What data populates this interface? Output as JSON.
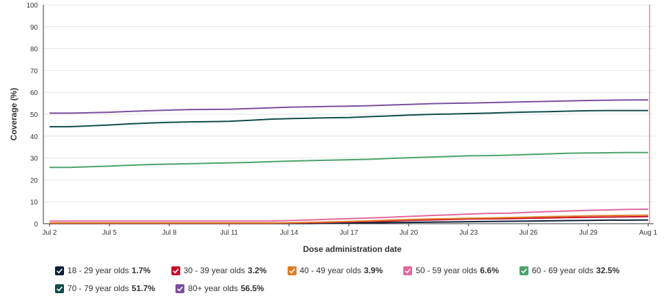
{
  "chart_data": {
    "type": "line",
    "xlabel": "Dose administration date",
    "ylabel": "Coverage (%)",
    "ylim": [
      0,
      100
    ],
    "y_ticks": [
      0,
      10,
      20,
      30,
      40,
      50,
      60,
      70,
      80,
      90,
      100
    ],
    "x_ticks": [
      "Jul 2",
      "Jul 5",
      "Jul 8",
      "Jul 11",
      "Jul 14",
      "Jul 17",
      "Jul 20",
      "Jul 23",
      "Jul 26",
      "Jul 29",
      "Aug 1"
    ],
    "x": [
      "Jul 2",
      "Jul 3",
      "Jul 4",
      "Jul 5",
      "Jul 6",
      "Jul 7",
      "Jul 8",
      "Jul 9",
      "Jul 10",
      "Jul 11",
      "Jul 12",
      "Jul 13",
      "Jul 14",
      "Jul 15",
      "Jul 16",
      "Jul 17",
      "Jul 18",
      "Jul 19",
      "Jul 20",
      "Jul 21",
      "Jul 22",
      "Jul 23",
      "Jul 24",
      "Jul 25",
      "Jul 26",
      "Jul 27",
      "Jul 28",
      "Jul 29",
      "Jul 30",
      "Jul 31",
      "Aug 1"
    ],
    "series": [
      {
        "name": "18 - 29 year olds",
        "legend_value": "1.7%",
        "color": "#0b1f3a",
        "values": [
          0.1,
          0.1,
          0.1,
          0.1,
          0.1,
          0.1,
          0.1,
          0.1,
          0.1,
          0.1,
          0.1,
          0.1,
          0.1,
          0.1,
          0.2,
          0.3,
          0.4,
          0.5,
          0.6,
          0.7,
          0.8,
          0.9,
          1.0,
          1.1,
          1.2,
          1.3,
          1.4,
          1.5,
          1.6,
          1.6,
          1.7
        ]
      },
      {
        "name": "30 - 39 year olds",
        "legend_value": "3.2%",
        "color": "#c8102e",
        "values": [
          0.2,
          0.2,
          0.2,
          0.2,
          0.2,
          0.2,
          0.2,
          0.2,
          0.2,
          0.2,
          0.2,
          0.2,
          0.3,
          0.4,
          0.6,
          0.8,
          1.0,
          1.2,
          1.5,
          1.7,
          1.9,
          2.1,
          2.2,
          2.3,
          2.5,
          2.6,
          2.8,
          2.9,
          3.0,
          3.1,
          3.2
        ]
      },
      {
        "name": "40 - 49 year olds",
        "legend_value": "3.9%",
        "color": "#e07b28",
        "values": [
          0.3,
          0.3,
          0.3,
          0.3,
          0.3,
          0.3,
          0.3,
          0.3,
          0.3,
          0.3,
          0.3,
          0.3,
          0.4,
          0.6,
          0.8,
          1.0,
          1.3,
          1.6,
          1.9,
          2.1,
          2.3,
          2.5,
          2.6,
          2.8,
          3.0,
          3.2,
          3.4,
          3.6,
          3.7,
          3.8,
          3.9
        ]
      },
      {
        "name": "50 - 59 year olds",
        "legend_value": "6.6%",
        "color": "#e2679c",
        "values": [
          1.2,
          1.2,
          1.2,
          1.2,
          1.2,
          1.2,
          1.2,
          1.2,
          1.2,
          1.2,
          1.2,
          1.2,
          1.4,
          1.7,
          2.0,
          2.3,
          2.6,
          2.9,
          3.3,
          3.7,
          4.0,
          4.4,
          4.7,
          4.8,
          5.2,
          5.5,
          5.8,
          6.1,
          6.3,
          6.5,
          6.6
        ]
      },
      {
        "name": "60 - 69 year olds",
        "legend_value": "32.5%",
        "color": "#4aa36b",
        "values": [
          25.7,
          25.7,
          26.0,
          26.3,
          26.7,
          27.0,
          27.2,
          27.4,
          27.6,
          27.8,
          28.0,
          28.3,
          28.6,
          28.8,
          29.0,
          29.2,
          29.4,
          29.8,
          30.1,
          30.4,
          30.7,
          31.0,
          31.1,
          31.3,
          31.6,
          31.9,
          32.2,
          32.3,
          32.4,
          32.5,
          32.5
        ]
      },
      {
        "name": "70 - 79 year olds",
        "legend_value": "51.7%",
        "color": "#0d4c4a",
        "values": [
          44.3,
          44.3,
          44.7,
          45.1,
          45.6,
          46.0,
          46.3,
          46.5,
          46.6,
          46.8,
          47.2,
          47.7,
          48.0,
          48.2,
          48.4,
          48.5,
          48.9,
          49.2,
          49.6,
          49.9,
          50.1,
          50.3,
          50.5,
          50.8,
          51.0,
          51.2,
          51.4,
          51.6,
          51.7,
          51.7,
          51.7
        ]
      },
      {
        "name": "80+ year olds",
        "legend_value": "56.5%",
        "color": "#7b4f9d",
        "values": [
          50.5,
          50.5,
          50.7,
          50.9,
          51.3,
          51.6,
          51.9,
          52.1,
          52.2,
          52.3,
          52.6,
          52.9,
          53.2,
          53.4,
          53.6,
          53.7,
          53.9,
          54.2,
          54.5,
          54.8,
          55.0,
          55.1,
          55.3,
          55.5,
          55.7,
          55.9,
          56.1,
          56.3,
          56.4,
          56.5,
          56.5
        ]
      }
    ]
  },
  "colors": {
    "axis": "#333333",
    "grid": "#e6e6e6",
    "today_line": "#d9534f"
  }
}
